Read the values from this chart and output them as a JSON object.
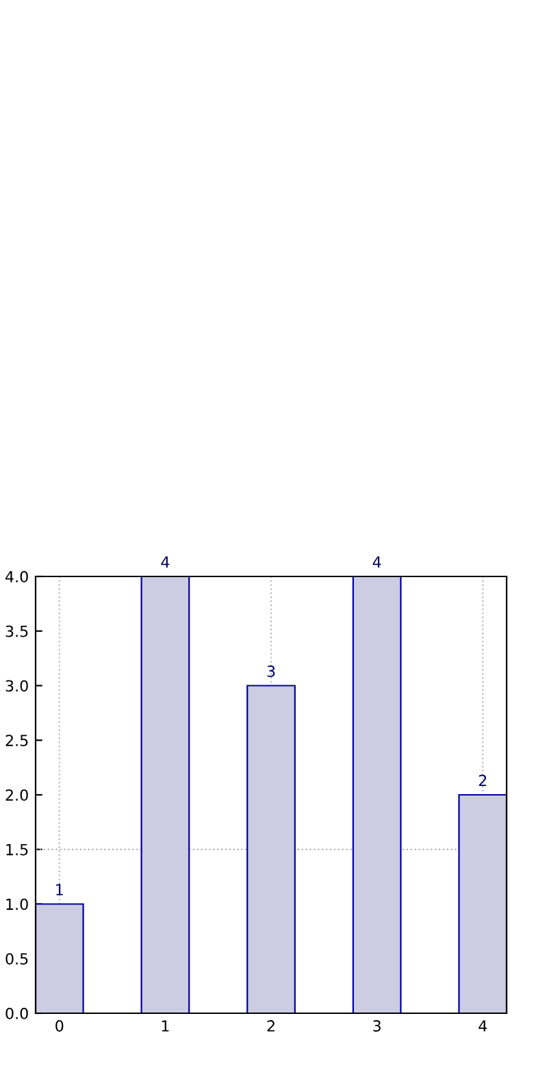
{
  "chart_data": {
    "type": "bar",
    "x": [
      0,
      1,
      2,
      3,
      4
    ],
    "values": [
      1,
      4,
      3,
      4,
      2
    ],
    "color": "#ccccE3",
    "xlim": [
      -0.225,
      4.225
    ],
    "xticks": [
      0,
      1,
      2,
      3,
      4
    ],
    "ylim": [
      0,
      4
    ],
    "yticks": [
      {
        "value": 0,
        "label": "0.0"
      },
      {
        "value": 0.5,
        "label": "0.5"
      },
      {
        "value": 1,
        "label": "1.0"
      },
      {
        "value": 1.5,
        "label": "1.5"
      },
      {
        "value": 2,
        "label": "2.0"
      },
      {
        "value": 2.5,
        "label": "2.5"
      },
      {
        "value": 3,
        "label": "3.0"
      },
      {
        "value": 3.5,
        "label": "3.5"
      },
      {
        "value": 4,
        "label": "4.0"
      }
    ],
    "ref_lines": [
      {
        "axis": "y",
        "value": 1.5,
        "color": "#aaaaaa",
        "line_style": "dotted"
      }
    ],
    "grid": "x",
    "data_labels": true
  }
}
